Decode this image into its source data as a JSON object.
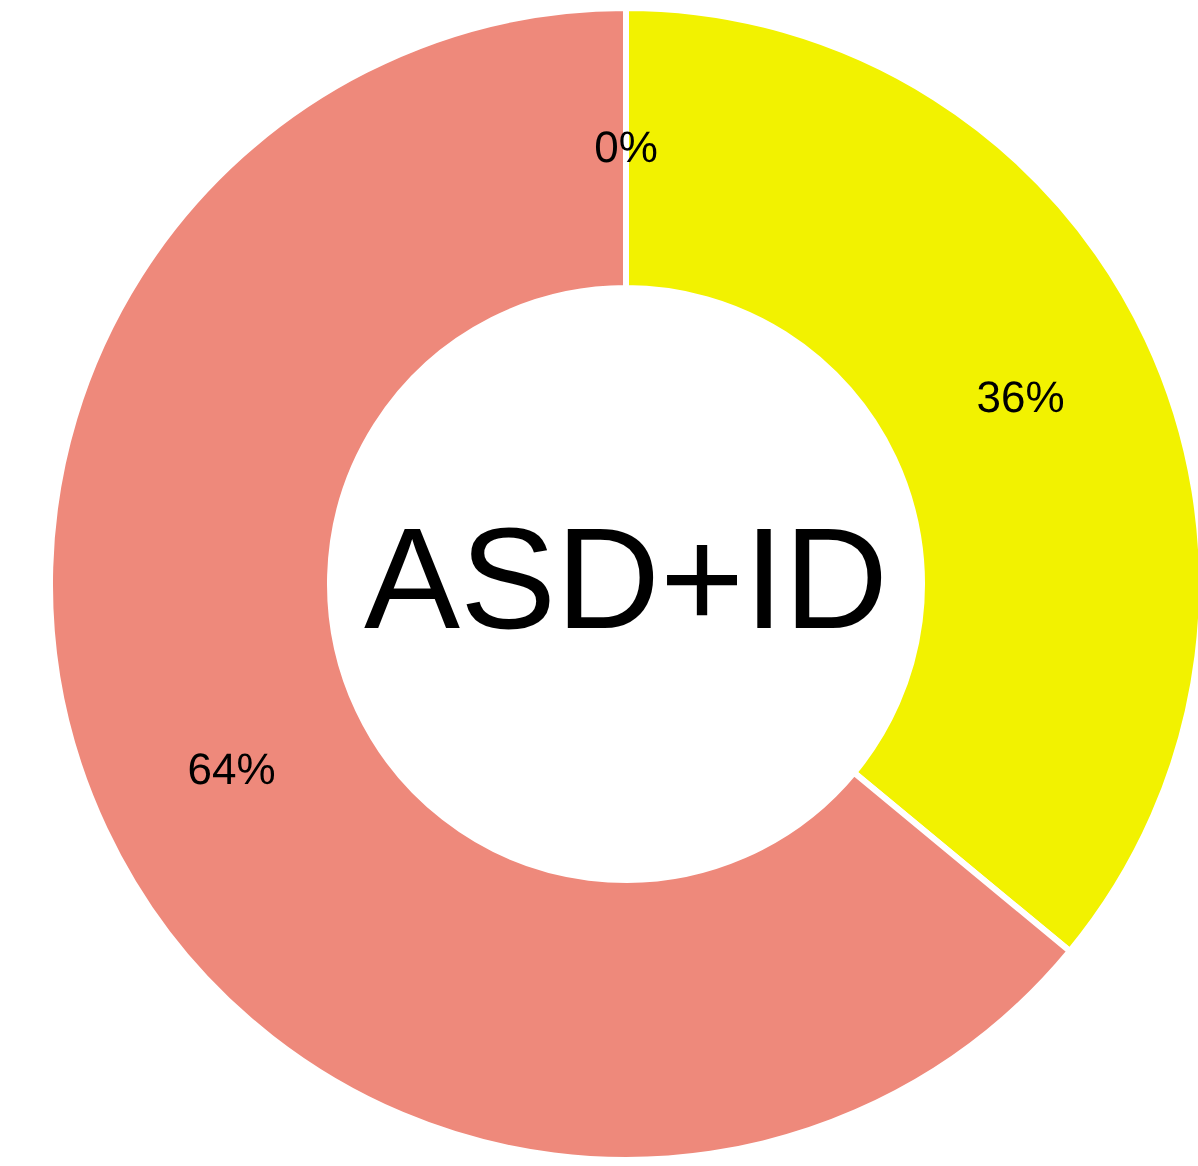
{
  "chart_data": {
    "type": "donut",
    "categories": [
      null,
      null,
      null
    ],
    "values": [
      0,
      36,
      64
    ],
    "colors": [
      "#4472c4",
      "#f2f200",
      "#ee897b"
    ],
    "value_labels": [
      "0%",
      "36%",
      "64%"
    ],
    "annotations": [
      "ASD+ID"
    ]
  }
}
